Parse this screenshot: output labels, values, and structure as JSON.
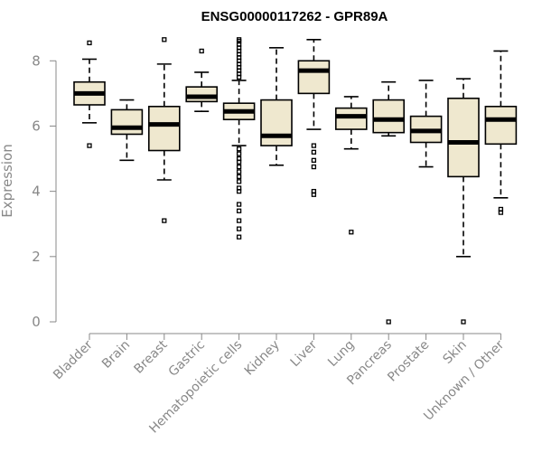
{
  "chart_data": {
    "type": "boxplot",
    "title": "ENSG00000117262 - GPR89A",
    "xlabel": "",
    "ylabel": "Expression",
    "ylim": [
      0,
      8.7
    ],
    "yticks": [
      0,
      2,
      4,
      6,
      8
    ],
    "box_fill": "#efe8cf",
    "categories": [
      "Bladder",
      "Brain",
      "Breast",
      "Gastric",
      "Hematopoietic cells",
      "Kidney",
      "Liver",
      "Lung",
      "Pancreas",
      "Prostate",
      "Skin",
      "Unknown / Other"
    ],
    "boxes": [
      {
        "min": 6.1,
        "q1": 6.65,
        "median": 7.0,
        "q3": 7.35,
        "max": 8.05,
        "outliers": [
          8.55,
          5.4
        ]
      },
      {
        "min": 4.95,
        "q1": 5.75,
        "median": 5.95,
        "q3": 6.5,
        "max": 6.8,
        "outliers": []
      },
      {
        "min": 4.35,
        "q1": 5.25,
        "median": 6.05,
        "q3": 6.6,
        "max": 7.9,
        "outliers": [
          8.65,
          3.1
        ]
      },
      {
        "min": 6.45,
        "q1": 6.75,
        "median": 6.9,
        "q3": 7.2,
        "max": 7.65,
        "outliers": [
          8.3
        ]
      },
      {
        "min": 5.4,
        "q1": 6.2,
        "median": 6.45,
        "q3": 6.7,
        "max": 7.4,
        "outliers": [
          8.65,
          8.6,
          8.5,
          8.4,
          8.3,
          8.2,
          8.1,
          8.0,
          7.9,
          7.8,
          7.7,
          7.6,
          7.5,
          5.3,
          5.15,
          5.0,
          4.9,
          4.75,
          4.6,
          4.45,
          4.3,
          4.1,
          4.0,
          3.6,
          3.4,
          3.1,
          2.85,
          2.6
        ]
      },
      {
        "min": 4.8,
        "q1": 5.4,
        "median": 5.7,
        "q3": 6.8,
        "max": 8.4,
        "outliers": []
      },
      {
        "min": 5.9,
        "q1": 7.0,
        "median": 7.7,
        "q3": 8.0,
        "max": 8.65,
        "outliers": [
          5.4,
          5.2,
          4.95,
          4.75,
          4.0,
          3.9
        ]
      },
      {
        "min": 5.3,
        "q1": 5.9,
        "median": 6.3,
        "q3": 6.55,
        "max": 6.9,
        "outliers": [
          2.75
        ]
      },
      {
        "min": 5.7,
        "q1": 5.8,
        "median": 6.2,
        "q3": 6.8,
        "max": 7.35,
        "outliers": [
          0.0
        ]
      },
      {
        "min": 4.75,
        "q1": 5.5,
        "median": 5.85,
        "q3": 6.3,
        "max": 7.4,
        "outliers": []
      },
      {
        "min": 2.0,
        "q1": 4.45,
        "median": 5.5,
        "q3": 6.85,
        "max": 7.45,
        "outliers": [
          0.0
        ]
      },
      {
        "min": 3.8,
        "q1": 5.45,
        "median": 6.2,
        "q3": 6.6,
        "max": 8.3,
        "outliers": [
          3.45,
          3.35
        ]
      }
    ]
  }
}
